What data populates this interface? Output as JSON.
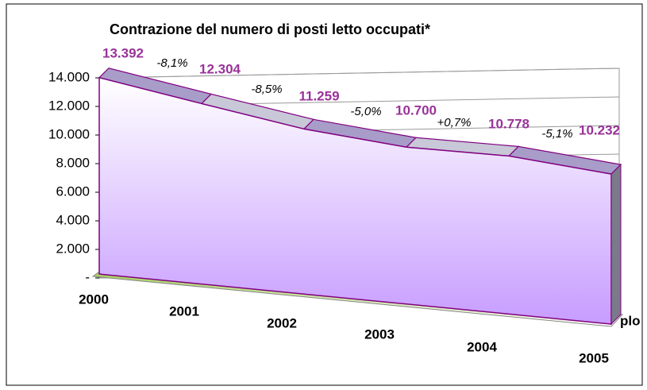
{
  "chart_data": {
    "type": "area",
    "title": "Contrazione del numero di posti letto occupati*",
    "categories": [
      "2000",
      "2001",
      "2002",
      "2003",
      "2004",
      "2005"
    ],
    "series": [
      {
        "name": "plo",
        "color": "#c79cff",
        "values": [
          13392,
          12304,
          11259,
          10700,
          10778,
          10232
        ],
        "value_labels": [
          "13.392",
          "12.304",
          "11.259",
          "10.700",
          "10.778",
          "10.232"
        ]
      }
    ],
    "annotations": [
      "-8,1%",
      "-8,5%",
      "-5,0%",
      "+0,7%",
      "-5,1%"
    ],
    "ylim": [
      0,
      14000
    ],
    "yticks": [
      {
        "value": 0,
        "label": "-"
      },
      {
        "value": 2000,
        "label": "2.000"
      },
      {
        "value": 4000,
        "label": "4.000"
      },
      {
        "value": 6000,
        "label": "6.000"
      },
      {
        "value": 8000,
        "label": "8.000"
      },
      {
        "value": 10000,
        "label": "10.000"
      },
      {
        "value": 12000,
        "label": "12.000"
      },
      {
        "value": 14000,
        "label": "14.000"
      }
    ],
    "grid": true
  }
}
